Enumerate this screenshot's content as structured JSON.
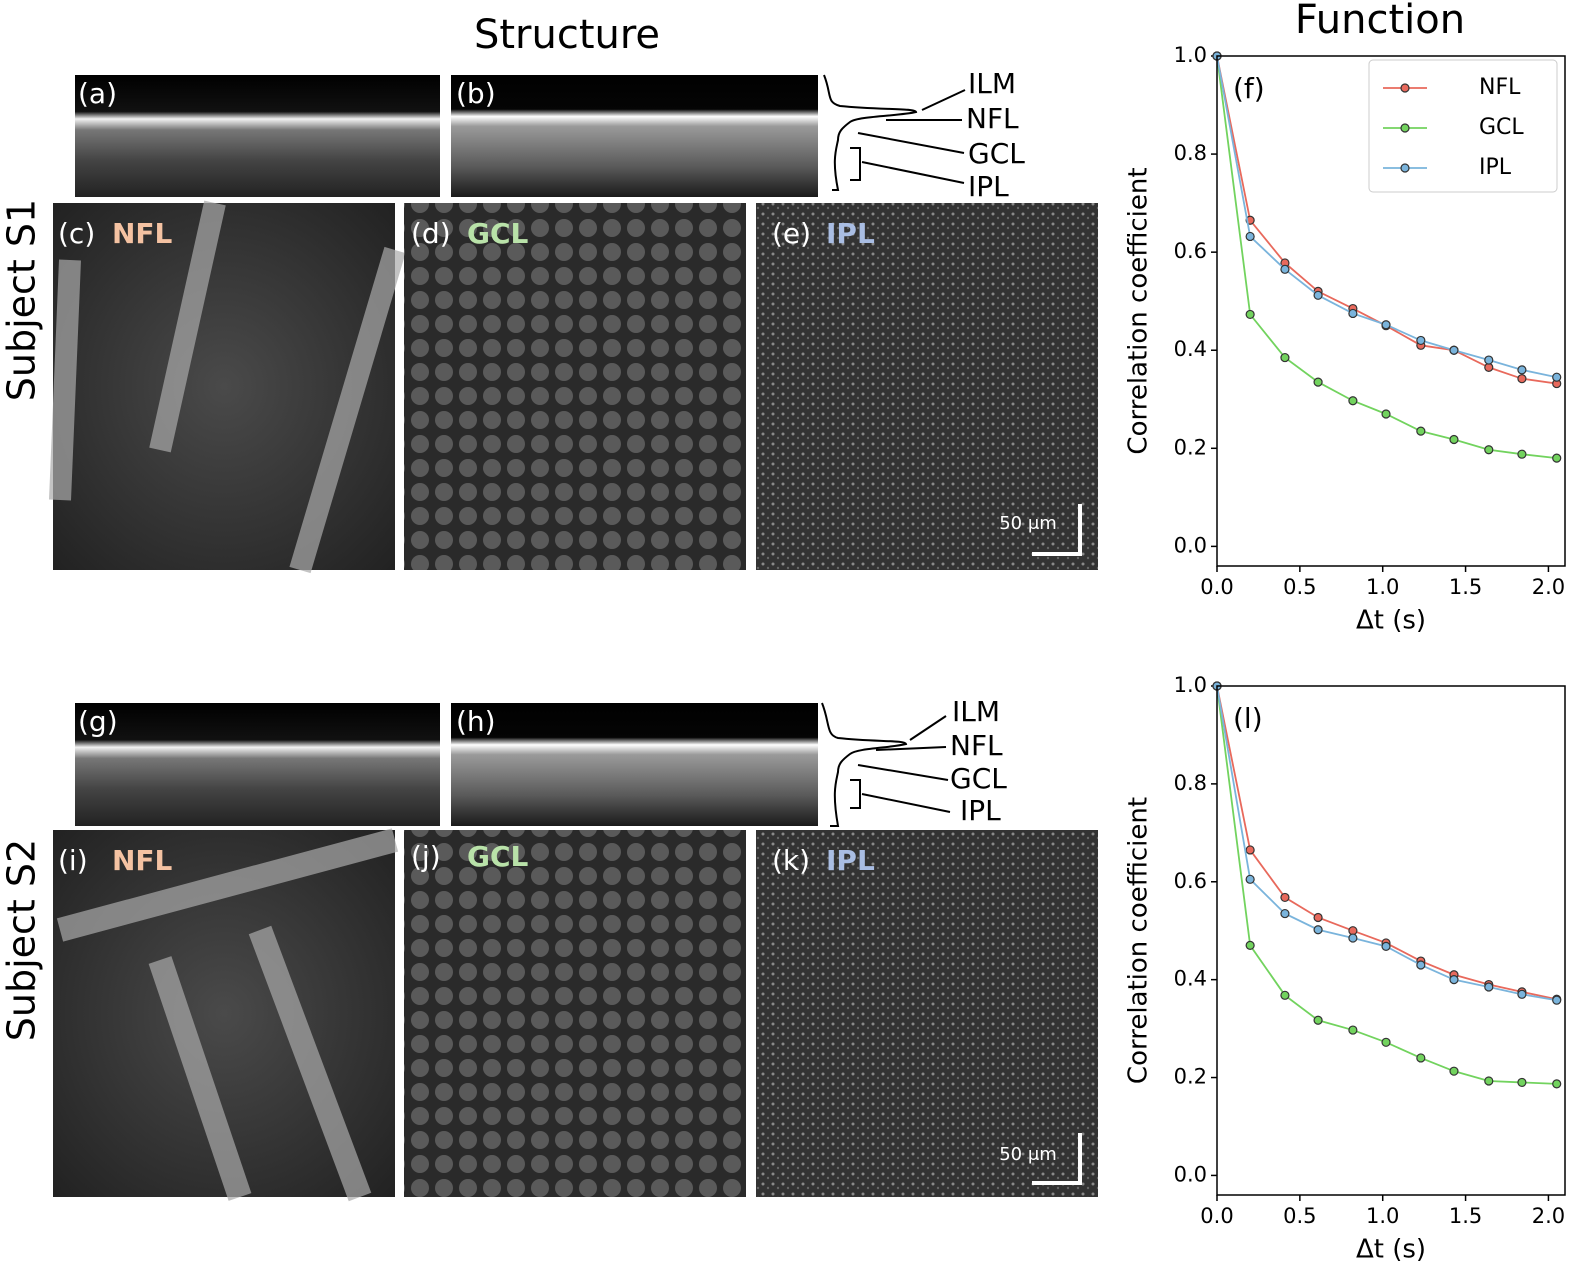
{
  "header": {
    "structure": "Structure",
    "function": "Function"
  },
  "rows": [
    {
      "subject": "Subject S1",
      "bscan_labels": [
        "(a)",
        "(b)"
      ],
      "enface": [
        {
          "label": "(c)",
          "layer": "NFL"
        },
        {
          "label": "(d)",
          "layer": "GCL"
        },
        {
          "label": "(e)",
          "layer": "IPL"
        }
      ],
      "layers": [
        "ILM",
        "NFL",
        "GCL",
        "IPL"
      ],
      "scale_bar": "50 μm"
    },
    {
      "subject": "Subject S2",
      "bscan_labels": [
        "(g)",
        "(h)"
      ],
      "enface": [
        {
          "label": "(i)",
          "layer": "NFL"
        },
        {
          "label": "(j)",
          "layer": "GCL"
        },
        {
          "label": "(k)",
          "layer": "IPL"
        }
      ],
      "layers": [
        "ILM",
        "NFL",
        "GCL",
        "IPL"
      ],
      "scale_bar": "50 μm"
    }
  ],
  "chart_data": [
    {
      "type": "line",
      "panel_label": "(f)",
      "x_label": "Δt (s)",
      "y_label": "Correlation coefficient",
      "x": [
        0,
        0.2,
        0.41,
        0.61,
        0.82,
        1.02,
        1.23,
        1.43,
        1.64,
        1.84,
        2.05
      ],
      "series": [
        {
          "name": "NFL",
          "color": "#e8695c",
          "values": [
            1.0,
            0.665,
            0.578,
            0.52,
            0.485,
            0.45,
            0.41,
            0.4,
            0.365,
            0.342,
            0.332
          ]
        },
        {
          "name": "GCL",
          "color": "#72d35e",
          "values": [
            1.0,
            0.473,
            0.385,
            0.335,
            0.297,
            0.27,
            0.235,
            0.218,
            0.197,
            0.188,
            0.18
          ]
        },
        {
          "name": "IPL",
          "color": "#7ab4dc",
          "values": [
            1.0,
            0.632,
            0.565,
            0.512,
            0.475,
            0.452,
            0.42,
            0.4,
            0.38,
            0.36,
            0.345
          ]
        }
      ],
      "xlim": [
        0,
        2.1
      ],
      "ylim": [
        -0.04,
        1.0
      ],
      "xticks": [
        {
          "value": 0,
          "label": "0.0"
        },
        0.5,
        {
          "value": 1,
          "label": "1.0"
        },
        1.5,
        {
          "value": 2,
          "label": "2.0"
        }
      ],
      "yticks": [
        {
          "value": 0,
          "label": "0.0"
        },
        0.2,
        0.4,
        0.6,
        0.8,
        {
          "value": 1,
          "label": "1.0"
        }
      ],
      "legend": "upper right"
    },
    {
      "type": "line",
      "panel_label": "(l)",
      "x_label": "Δt (s)",
      "y_label": "Correlation coefficient",
      "x": [
        0,
        0.2,
        0.41,
        0.61,
        0.82,
        1.02,
        1.23,
        1.43,
        1.64,
        1.84,
        2.05
      ],
      "series": [
        {
          "name": "NFL",
          "color": "#e8695c",
          "values": [
            1.0,
            0.665,
            0.568,
            0.527,
            0.5,
            0.475,
            0.438,
            0.41,
            0.39,
            0.375,
            0.36
          ]
        },
        {
          "name": "GCL",
          "color": "#72d35e",
          "values": [
            1.0,
            0.47,
            0.368,
            0.317,
            0.297,
            0.272,
            0.24,
            0.213,
            0.193,
            0.19,
            0.187
          ]
        },
        {
          "name": "IPL",
          "color": "#7ab4dc",
          "values": [
            1.0,
            0.605,
            0.535,
            0.502,
            0.485,
            0.468,
            0.43,
            0.4,
            0.385,
            0.37,
            0.358
          ]
        }
      ],
      "xlim": [
        0,
        2.1
      ],
      "ylim": [
        -0.04,
        1.0
      ],
      "xticks": [
        {
          "value": 0,
          "label": "0.0"
        },
        0.5,
        {
          "value": 1,
          "label": "1.0"
        },
        1.5,
        {
          "value": 2,
          "label": "2.0"
        }
      ],
      "yticks": [
        {
          "value": 0,
          "label": "0.0"
        },
        0.2,
        0.4,
        0.6,
        0.8,
        {
          "value": 1,
          "label": "1.0"
        }
      ]
    }
  ]
}
